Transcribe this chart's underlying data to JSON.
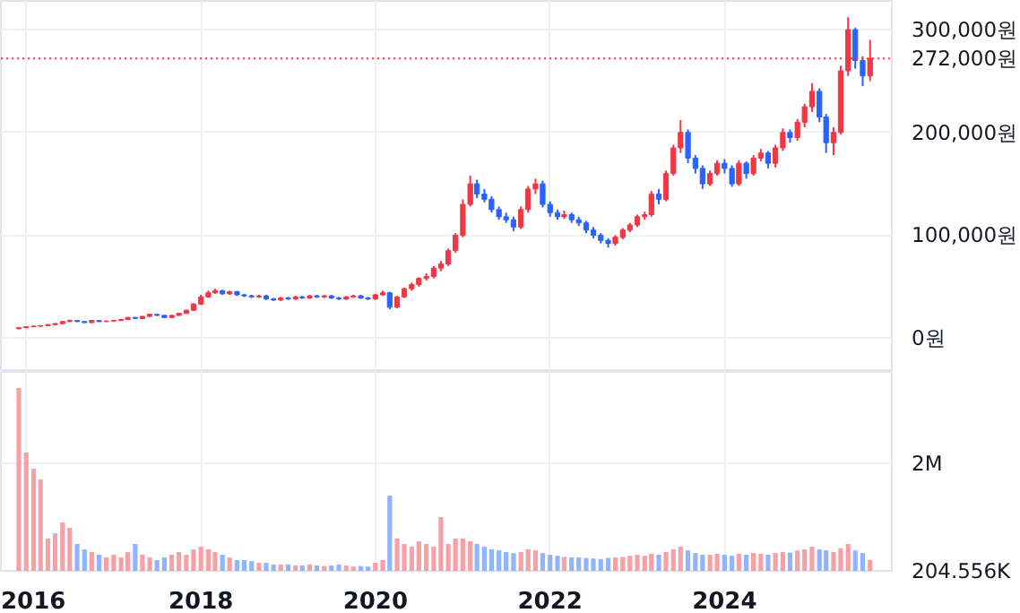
{
  "chart_data": [
    {
      "type": "candlestick",
      "tick_labels": "y",
      "grid": true,
      "x": [
        "2015-12",
        "2016-01",
        "2016-02",
        "2016-03",
        "2016-04",
        "2016-05",
        "2016-06",
        "2016-07",
        "2016-08",
        "2016-09",
        "2016-10",
        "2016-11",
        "2016-12",
        "2017-01",
        "2017-02",
        "2017-03",
        "2017-04",
        "2017-05",
        "2017-06",
        "2017-07",
        "2017-08",
        "2017-09",
        "2017-10",
        "2017-11",
        "2017-12",
        "2018-01",
        "2018-02",
        "2018-03",
        "2018-04",
        "2018-05",
        "2018-06",
        "2018-07",
        "2018-08",
        "2018-09",
        "2018-10",
        "2018-11",
        "2018-12",
        "2019-01",
        "2019-02",
        "2019-03",
        "2019-04",
        "2019-05",
        "2019-06",
        "2019-07",
        "2019-08",
        "2019-09",
        "2019-10",
        "2019-11",
        "2019-12",
        "2020-01",
        "2020-02",
        "2020-03",
        "2020-04",
        "2020-05",
        "2020-06",
        "2020-07",
        "2020-08",
        "2020-09",
        "2020-10",
        "2020-11",
        "2020-12",
        "2021-01",
        "2021-02",
        "2021-03",
        "2021-04",
        "2021-05",
        "2021-06",
        "2021-07",
        "2021-08",
        "2021-09",
        "2021-10",
        "2021-11",
        "2021-12",
        "2022-01",
        "2022-02",
        "2022-03",
        "2022-04",
        "2022-05",
        "2022-06",
        "2022-07",
        "2022-08",
        "2022-09",
        "2022-10",
        "2022-11",
        "2022-12",
        "2023-01",
        "2023-02",
        "2023-03",
        "2023-04",
        "2023-05",
        "2023-06",
        "2023-07",
        "2023-08",
        "2023-09",
        "2023-10",
        "2023-11",
        "2023-12",
        "2024-01",
        "2024-02",
        "2024-03",
        "2024-04",
        "2024-05",
        "2024-06",
        "2024-07",
        "2024-08",
        "2024-09",
        "2024-10",
        "2024-11",
        "2024-12",
        "2025-01",
        "2025-02",
        "2025-03",
        "2025-04",
        "2025-05",
        "2025-06",
        "2025-07",
        "2025-08",
        "2025-09"
      ],
      "ohlc": [
        [
          9000,
          10500,
          8500,
          10000
        ],
        [
          10000,
          11500,
          9500,
          11000
        ],
        [
          11000,
          12000,
          10500,
          11500
        ],
        [
          11500,
          12500,
          11000,
          12000
        ],
        [
          12000,
          13500,
          11500,
          13000
        ],
        [
          13000,
          14500,
          12500,
          14000
        ],
        [
          14000,
          16500,
          13500,
          16000
        ],
        [
          16000,
          18000,
          15500,
          17000
        ],
        [
          17000,
          17500,
          15500,
          16000
        ],
        [
          16000,
          16500,
          14500,
          15000
        ],
        [
          15000,
          17500,
          14500,
          17000
        ],
        [
          17000,
          17500,
          15500,
          16000
        ],
        [
          16000,
          17000,
          15500,
          16500
        ],
        [
          16500,
          17500,
          16000,
          17000
        ],
        [
          17000,
          18500,
          16500,
          18000
        ],
        [
          18000,
          20500,
          17500,
          20000
        ],
        [
          20000,
          20500,
          18500,
          19000
        ],
        [
          19000,
          21500,
          18500,
          21000
        ],
        [
          21000,
          23500,
          20500,
          23000
        ],
        [
          23000,
          23500,
          21500,
          22000
        ],
        [
          22000,
          22500,
          19500,
          20000
        ],
        [
          20000,
          22500,
          19500,
          22000
        ],
        [
          22000,
          24500,
          21500,
          24000
        ],
        [
          24000,
          27500,
          23500,
          27000
        ],
        [
          27000,
          34000,
          26500,
          33000
        ],
        [
          33000,
          42000,
          32000,
          40000
        ],
        [
          40000,
          46000,
          39000,
          44000
        ],
        [
          44000,
          48000,
          43000,
          46000
        ],
        [
          46000,
          47000,
          42000,
          43000
        ],
        [
          43000,
          46000,
          42000,
          45000
        ],
        [
          45000,
          46000,
          41000,
          42000
        ],
        [
          42000,
          43000,
          40000,
          41000
        ],
        [
          41000,
          42000,
          39000,
          40000
        ],
        [
          40000,
          42000,
          39000,
          41000
        ],
        [
          41000,
          42000,
          37000,
          38000
        ],
        [
          38000,
          39000,
          36000,
          37000
        ],
        [
          37000,
          40000,
          36000,
          39000
        ],
        [
          39000,
          40000,
          37000,
          38000
        ],
        [
          38000,
          41000,
          37000,
          40000
        ],
        [
          40000,
          41000,
          38000,
          39000
        ],
        [
          39000,
          42000,
          38000,
          41000
        ],
        [
          41000,
          42000,
          39000,
          40000
        ],
        [
          40000,
          42000,
          39000,
          41000
        ],
        [
          41000,
          42000,
          38000,
          39000
        ],
        [
          39000,
          40000,
          37000,
          38000
        ],
        [
          38000,
          41000,
          37000,
          40000
        ],
        [
          40000,
          42000,
          39000,
          41000
        ],
        [
          41000,
          42000,
          38000,
          39000
        ],
        [
          39000,
          40000,
          37000,
          38000
        ],
        [
          38000,
          43000,
          37000,
          42000
        ],
        [
          42000,
          46000,
          41000,
          44000
        ],
        [
          44000,
          45000,
          28000,
          30000
        ],
        [
          30000,
          41000,
          29000,
          40000
        ],
        [
          40000,
          49000,
          39000,
          48000
        ],
        [
          48000,
          54000,
          46000,
          52000
        ],
        [
          52000,
          59000,
          50000,
          58000
        ],
        [
          58000,
          63000,
          56000,
          60000
        ],
        [
          60000,
          70000,
          58000,
          68000
        ],
        [
          68000,
          75000,
          65000,
          72000
        ],
        [
          72000,
          87000,
          70000,
          85000
        ],
        [
          85000,
          102000,
          83000,
          100000
        ],
        [
          100000,
          135000,
          98000,
          130000
        ],
        [
          130000,
          158000,
          128000,
          150000
        ],
        [
          150000,
          154000,
          136000,
          140000
        ],
        [
          140000,
          145000,
          132000,
          135000
        ],
        [
          135000,
          138000,
          122000,
          125000
        ],
        [
          125000,
          128000,
          115000,
          118000
        ],
        [
          118000,
          122000,
          112000,
          115000
        ],
        [
          115000,
          118000,
          104000,
          108000
        ],
        [
          108000,
          128000,
          106000,
          125000
        ],
        [
          125000,
          148000,
          122000,
          145000
        ],
        [
          145000,
          155000,
          140000,
          150000
        ],
        [
          150000,
          153000,
          127000,
          130000
        ],
        [
          130000,
          133000,
          118000,
          122000
        ],
        [
          122000,
          125000,
          115000,
          118000
        ],
        [
          118000,
          124000,
          116000,
          120000
        ],
        [
          120000,
          122000,
          112000,
          115000
        ],
        [
          115000,
          118000,
          109000,
          112000
        ],
        [
          112000,
          114000,
          102000,
          105000
        ],
        [
          105000,
          108000,
          97000,
          100000
        ],
        [
          100000,
          102000,
          92000,
          95000
        ],
        [
          95000,
          97000,
          88000,
          92000
        ],
        [
          92000,
          100000,
          90000,
          98000
        ],
        [
          98000,
          107000,
          96000,
          105000
        ],
        [
          105000,
          112000,
          103000,
          110000
        ],
        [
          110000,
          120000,
          108000,
          118000
        ],
        [
          118000,
          123000,
          115000,
          120000
        ],
        [
          120000,
          143000,
          118000,
          140000
        ],
        [
          140000,
          145000,
          130000,
          135000
        ],
        [
          135000,
          163000,
          133000,
          160000
        ],
        [
          160000,
          188000,
          158000,
          185000
        ],
        [
          185000,
          212000,
          180000,
          200000
        ],
        [
          200000,
          203000,
          170000,
          175000
        ],
        [
          175000,
          178000,
          160000,
          165000
        ],
        [
          165000,
          168000,
          145000,
          150000
        ],
        [
          150000,
          163000,
          148000,
          160000
        ],
        [
          160000,
          173000,
          158000,
          170000
        ],
        [
          170000,
          174000,
          160000,
          165000
        ],
        [
          165000,
          168000,
          147000,
          150000
        ],
        [
          150000,
          173000,
          148000,
          170000
        ],
        [
          170000,
          172000,
          155000,
          160000
        ],
        [
          160000,
          178000,
          158000,
          175000
        ],
        [
          175000,
          184000,
          172000,
          180000
        ],
        [
          180000,
          182000,
          165000,
          170000
        ],
        [
          170000,
          188000,
          166000,
          185000
        ],
        [
          185000,
          204000,
          182000,
          200000
        ],
        [
          200000,
          203000,
          190000,
          195000
        ],
        [
          195000,
          213000,
          192000,
          210000
        ],
        [
          210000,
          228000,
          205000,
          225000
        ],
        [
          225000,
          248000,
          220000,
          240000
        ],
        [
          240000,
          243000,
          210000,
          215000
        ],
        [
          215000,
          218000,
          180000,
          190000
        ],
        [
          190000,
          205000,
          178000,
          200000
        ],
        [
          200000,
          265000,
          198000,
          260000
        ],
        [
          260000,
          312000,
          255000,
          300000
        ],
        [
          300000,
          302000,
          262000,
          270000
        ],
        [
          270000,
          274000,
          245000,
          255000
        ],
        [
          255000,
          290000,
          250000,
          272000
        ]
      ],
      "colors": [
        "#f23645",
        "#f23645",
        "#f23645",
        "#f23645",
        "#f23645",
        "#f23645",
        "#f23645",
        "#f23645",
        "#2962ff",
        "#2962ff",
        "#f23645",
        "#2962ff",
        "#f23645",
        "#f23645",
        "#f23645",
        "#f23645",
        "#2962ff",
        "#f23645",
        "#f23645",
        "#2962ff",
        "#2962ff",
        "#f23645",
        "#f23645",
        "#f23645",
        "#f23645",
        "#f23645",
        "#f23645",
        "#f23645",
        "#2962ff",
        "#f23645",
        "#2962ff",
        "#2962ff",
        "#2962ff",
        "#f23645",
        "#2962ff",
        "#2962ff",
        "#f23645",
        "#2962ff",
        "#f23645",
        "#2962ff",
        "#f23645",
        "#2962ff",
        "#f23645",
        "#2962ff",
        "#2962ff",
        "#f23645",
        "#f23645",
        "#2962ff",
        "#2962ff",
        "#f23645",
        "#f23645",
        "#2962ff",
        "#f23645",
        "#f23645",
        "#f23645",
        "#f23645",
        "#f23645",
        "#f23645",
        "#f23645",
        "#f23645",
        "#f23645",
        "#f23645",
        "#f23645",
        "#2962ff",
        "#2962ff",
        "#2962ff",
        "#2962ff",
        "#2962ff",
        "#2962ff",
        "#f23645",
        "#f23645",
        "#f23645",
        "#2962ff",
        "#2962ff",
        "#2962ff",
        "#f23645",
        "#2962ff",
        "#2962ff",
        "#2962ff",
        "#2962ff",
        "#2962ff",
        "#2962ff",
        "#f23645",
        "#f23645",
        "#f23645",
        "#f23645",
        "#f23645",
        "#f23645",
        "#2962ff",
        "#f23645",
        "#f23645",
        "#f23645",
        "#2962ff",
        "#2962ff",
        "#2962ff",
        "#f23645",
        "#f23645",
        "#2962ff",
        "#2962ff",
        "#f23645",
        "#2962ff",
        "#f23645",
        "#f23645",
        "#2962ff",
        "#f23645",
        "#f23645",
        "#2962ff",
        "#f23645",
        "#f23645",
        "#f23645",
        "#2962ff",
        "#2962ff",
        "#f23645",
        "#f23645",
        "#f23645",
        "#2962ff",
        "#2962ff",
        "#f23645"
      ],
      "xlim": [
        "2015-09-17",
        "2025-12-01"
      ],
      "ylim": [
        -33000,
        328000
      ],
      "yticks": [
        {
          "value": 0,
          "label": "0원"
        },
        {
          "value": 100000,
          "label": "100,000원"
        },
        {
          "value": 200000,
          "label": "200,000원"
        },
        {
          "value": 300000,
          "label": "300,000원"
        }
      ],
      "ref_lines": [
        {
          "axis": "y",
          "value": 272000,
          "label": "272,000원",
          "color": "#f23645",
          "line_style": "dotted"
        }
      ]
    },
    {
      "type": "bar",
      "grid": true,
      "x": [
        "2015-12",
        "2016-01",
        "2016-02",
        "2016-03",
        "2016-04",
        "2016-05",
        "2016-06",
        "2016-07",
        "2016-08",
        "2016-09",
        "2016-10",
        "2016-11",
        "2016-12",
        "2017-01",
        "2017-02",
        "2017-03",
        "2017-04",
        "2017-05",
        "2017-06",
        "2017-07",
        "2017-08",
        "2017-09",
        "2017-10",
        "2017-11",
        "2017-12",
        "2018-01",
        "2018-02",
        "2018-03",
        "2018-04",
        "2018-05",
        "2018-06",
        "2018-07",
        "2018-08",
        "2018-09",
        "2018-10",
        "2018-11",
        "2018-12",
        "2019-01",
        "2019-02",
        "2019-03",
        "2019-04",
        "2019-05",
        "2019-06",
        "2019-07",
        "2019-08",
        "2019-09",
        "2019-10",
        "2019-11",
        "2019-12",
        "2020-01",
        "2020-02",
        "2020-03",
        "2020-04",
        "2020-05",
        "2020-06",
        "2020-07",
        "2020-08",
        "2020-09",
        "2020-10",
        "2020-11",
        "2020-12",
        "2021-01",
        "2021-02",
        "2021-03",
        "2021-04",
        "2021-05",
        "2021-06",
        "2021-07",
        "2021-08",
        "2021-09",
        "2021-10",
        "2021-11",
        "2021-12",
        "2022-01",
        "2022-02",
        "2022-03",
        "2022-04",
        "2022-05",
        "2022-06",
        "2022-07",
        "2022-08",
        "2022-09",
        "2022-10",
        "2022-11",
        "2022-12",
        "2023-01",
        "2023-02",
        "2023-03",
        "2023-04",
        "2023-05",
        "2023-06",
        "2023-07",
        "2023-08",
        "2023-09",
        "2023-10",
        "2023-11",
        "2023-12",
        "2024-01",
        "2024-02",
        "2024-03",
        "2024-04",
        "2024-05",
        "2024-06",
        "2024-07",
        "2024-08",
        "2024-09",
        "2024-10",
        "2024-11",
        "2024-12",
        "2025-01",
        "2025-02",
        "2025-03",
        "2025-04",
        "2025-05",
        "2025-06",
        "2025-07",
        "2025-08",
        "2025-09"
      ],
      "values": [
        3400000,
        2200000,
        1900000,
        1700000,
        600000,
        700000,
        900000,
        800000,
        500000,
        400000,
        350000,
        300000,
        250000,
        300000,
        250000,
        350000,
        500000,
        300000,
        250000,
        200000,
        250000,
        300000,
        350000,
        300000,
        400000,
        450000,
        400000,
        350000,
        300000,
        250000,
        200000,
        200000,
        180000,
        150000,
        150000,
        120000,
        120000,
        120000,
        100000,
        100000,
        120000,
        100000,
        90000,
        100000,
        120000,
        100000,
        80000,
        90000,
        80000,
        150000,
        200000,
        1400000,
        600000,
        500000,
        450000,
        550000,
        500000,
        450000,
        1000000,
        500000,
        600000,
        600000,
        550000,
        500000,
        450000,
        400000,
        380000,
        350000,
        330000,
        350000,
        400000,
        380000,
        330000,
        300000,
        280000,
        260000,
        250000,
        250000,
        240000,
        230000,
        220000,
        240000,
        250000,
        260000,
        280000,
        300000,
        280000,
        320000,
        300000,
        350000,
        400000,
        450000,
        380000,
        330000,
        300000,
        300000,
        320000,
        300000,
        280000,
        320000,
        300000,
        330000,
        320000,
        300000,
        330000,
        350000,
        340000,
        380000,
        400000,
        450000,
        400000,
        380000,
        350000,
        420000,
        500000,
        380000,
        330000,
        204556
      ],
      "colors": [
        "#f7a1a6",
        "#f7a1a6",
        "#f7a1a6",
        "#f7a1a6",
        "#f7a1a6",
        "#f7a1a6",
        "#f7a1a6",
        "#f7a1a6",
        "#90b4fe",
        "#90b4fe",
        "#f7a1a6",
        "#90b4fe",
        "#f7a1a6",
        "#f7a1a6",
        "#f7a1a6",
        "#f7a1a6",
        "#90b4fe",
        "#f7a1a6",
        "#f7a1a6",
        "#90b4fe",
        "#90b4fe",
        "#f7a1a6",
        "#f7a1a6",
        "#f7a1a6",
        "#f7a1a6",
        "#f7a1a6",
        "#f7a1a6",
        "#f7a1a6",
        "#90b4fe",
        "#f7a1a6",
        "#90b4fe",
        "#90b4fe",
        "#90b4fe",
        "#f7a1a6",
        "#90b4fe",
        "#90b4fe",
        "#f7a1a6",
        "#90b4fe",
        "#f7a1a6",
        "#90b4fe",
        "#f7a1a6",
        "#90b4fe",
        "#f7a1a6",
        "#90b4fe",
        "#90b4fe",
        "#f7a1a6",
        "#f7a1a6",
        "#90b4fe",
        "#90b4fe",
        "#f7a1a6",
        "#f7a1a6",
        "#90b4fe",
        "#f7a1a6",
        "#f7a1a6",
        "#f7a1a6",
        "#f7a1a6",
        "#f7a1a6",
        "#f7a1a6",
        "#f7a1a6",
        "#f7a1a6",
        "#f7a1a6",
        "#f7a1a6",
        "#f7a1a6",
        "#90b4fe",
        "#90b4fe",
        "#90b4fe",
        "#90b4fe",
        "#90b4fe",
        "#90b4fe",
        "#f7a1a6",
        "#f7a1a6",
        "#f7a1a6",
        "#90b4fe",
        "#90b4fe",
        "#90b4fe",
        "#f7a1a6",
        "#90b4fe",
        "#90b4fe",
        "#90b4fe",
        "#90b4fe",
        "#90b4fe",
        "#90b4fe",
        "#f7a1a6",
        "#f7a1a6",
        "#f7a1a6",
        "#f7a1a6",
        "#f7a1a6",
        "#f7a1a6",
        "#90b4fe",
        "#f7a1a6",
        "#f7a1a6",
        "#f7a1a6",
        "#90b4fe",
        "#90b4fe",
        "#90b4fe",
        "#f7a1a6",
        "#f7a1a6",
        "#90b4fe",
        "#90b4fe",
        "#f7a1a6",
        "#90b4fe",
        "#f7a1a6",
        "#f7a1a6",
        "#90b4fe",
        "#f7a1a6",
        "#f7a1a6",
        "#90b4fe",
        "#f7a1a6",
        "#f7a1a6",
        "#f7a1a6",
        "#90b4fe",
        "#90b4fe",
        "#f7a1a6",
        "#f7a1a6",
        "#f7a1a6",
        "#90b4fe",
        "#90b4fe",
        "#f7a1a6"
      ],
      "xlim": [
        "2015-09-17",
        "2025-12-01"
      ],
      "xticks": [
        "2016",
        "2018",
        "2020",
        "2022",
        "2024"
      ],
      "ylim": [
        0,
        3700000
      ],
      "yticks": [
        {
          "value": 2000000,
          "label": "2M"
        }
      ],
      "annotations": [
        "204.556K"
      ]
    }
  ]
}
